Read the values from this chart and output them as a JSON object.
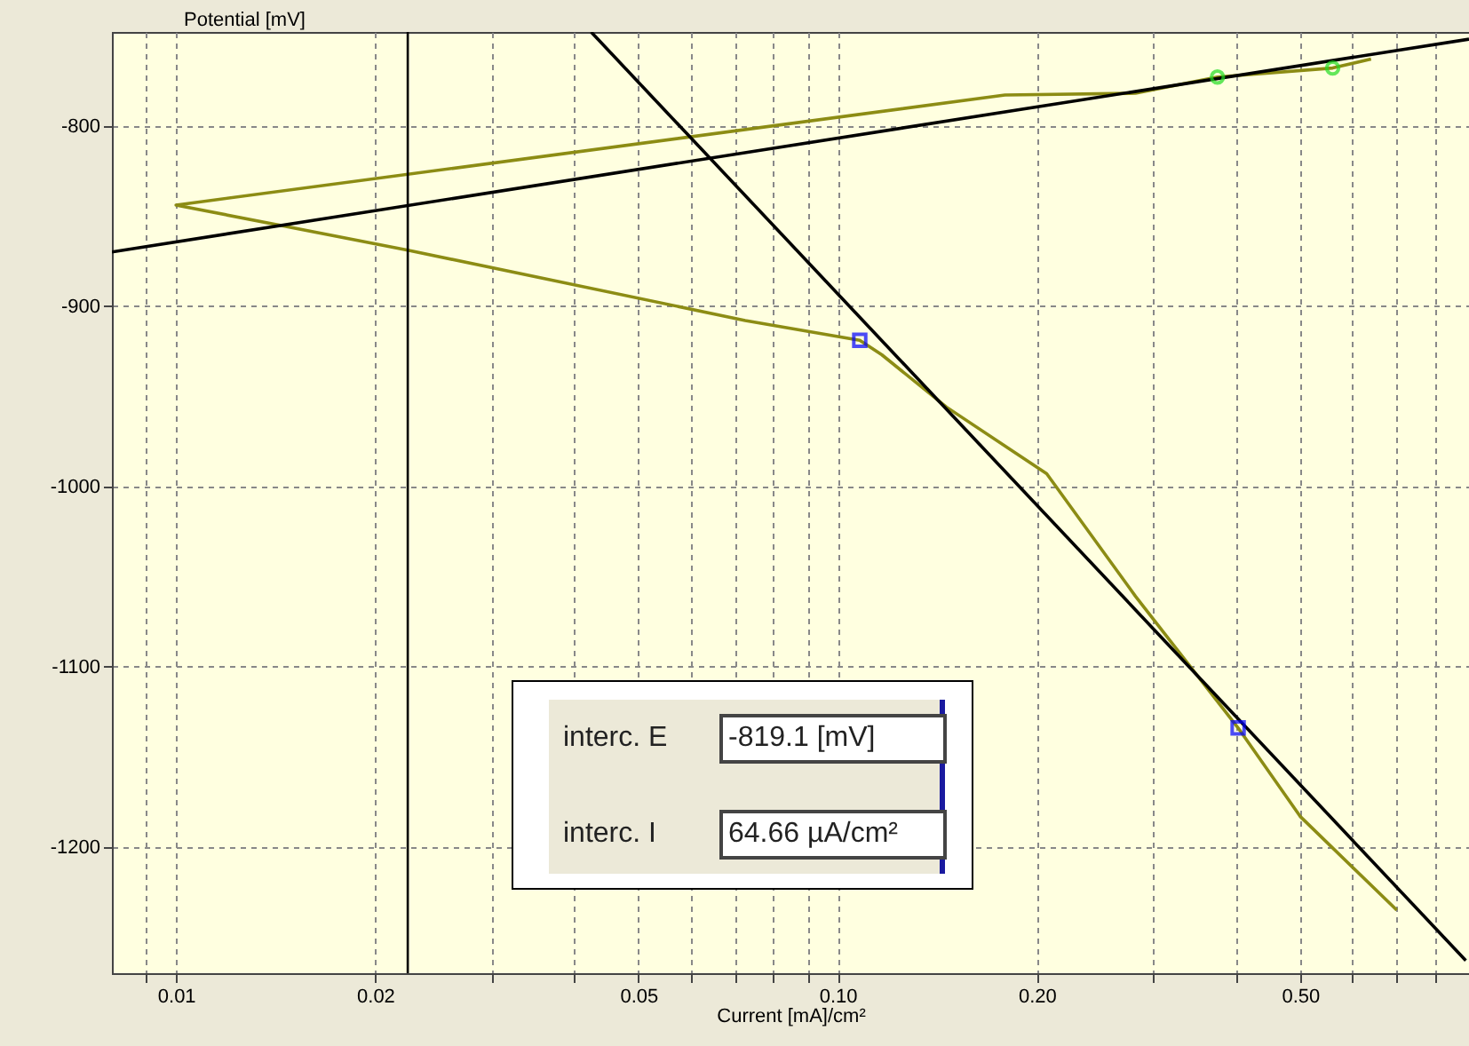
{
  "chart_data": {
    "type": "line",
    "xlabel": "Current [mA]/cm²",
    "ylabel": "Potential [mV]",
    "log": "x",
    "xlim": [
      0.008,
      0.9
    ],
    "ylim": [
      -1270,
      -748
    ],
    "xticks": [
      {
        "value": 0.009,
        "label": null
      },
      {
        "value": 0.01,
        "label": "0.01"
      },
      {
        "value": 0.02,
        "label": "0.02"
      },
      {
        "value": 0.03,
        "label": null
      },
      {
        "value": 0.04,
        "label": null
      },
      {
        "value": 0.05,
        "label": "0.05"
      },
      {
        "value": 0.06,
        "label": null
      },
      {
        "value": 0.07,
        "label": null
      },
      {
        "value": 0.08,
        "label": null
      },
      {
        "value": 0.09,
        "label": null
      },
      {
        "value": 0.1,
        "label": "0.10"
      },
      {
        "value": 0.2,
        "label": "0.20"
      },
      {
        "value": 0.3,
        "label": null
      },
      {
        "value": 0.4,
        "label": null
      },
      {
        "value": 0.5,
        "label": "0.50"
      },
      {
        "value": 0.6,
        "label": null
      },
      {
        "value": 0.7,
        "label": null
      },
      {
        "value": 0.8,
        "label": null
      },
      {
        "value": 0.9,
        "label": null
      }
    ],
    "yticks": [
      -800,
      -900,
      -1000,
      -1100,
      -1200
    ],
    "grid": true,
    "series": [
      {
        "type": "line",
        "color": "#8c8c14",
        "marker": "none",
        "x": [
          0.64,
          0.56,
          0.375,
          0.282,
          0.179,
          0.01,
          0.0224,
          0.0725,
          0.108,
          0.1166,
          0.146,
          0.207,
          0.282,
          0.403,
          0.5,
          0.7
        ],
        "values": [
          -763,
          -768,
          -773,
          -782,
          -783,
          -844,
          -869,
          -908,
          -919,
          -927,
          -956,
          -993,
          -1061,
          -1134,
          -1183,
          -1235
        ]
      },
      {
        "type": "line",
        "color": "#000000",
        "marker": "none",
        "x": [
          0.008,
          0.9
        ],
        "values": [
          -870,
          -752
        ]
      },
      {
        "type": "line",
        "color": "#000000",
        "marker": "none",
        "x": [
          0.0424,
          0.89
        ],
        "values": [
          -748,
          -1263
        ]
      },
      {
        "type": "scatter",
        "color": "#0000ff",
        "marker": "square",
        "x": [
          0.108,
          0.403
        ],
        "values": [
          -919,
          -1134
        ]
      },
      {
        "type": "scatter",
        "color": "#22dd22",
        "marker": "circle",
        "x": [
          0.375,
          0.56
        ],
        "values": [
          -773,
          -768
        ]
      }
    ],
    "ref_lines": [
      {
        "axis": "x",
        "value": 0.0224,
        "color": "#000000"
      }
    ],
    "annotations": [
      "interc. E",
      "-819.1 [mV]",
      "interc. I",
      "64.66 µA/cm²"
    ]
  }
}
